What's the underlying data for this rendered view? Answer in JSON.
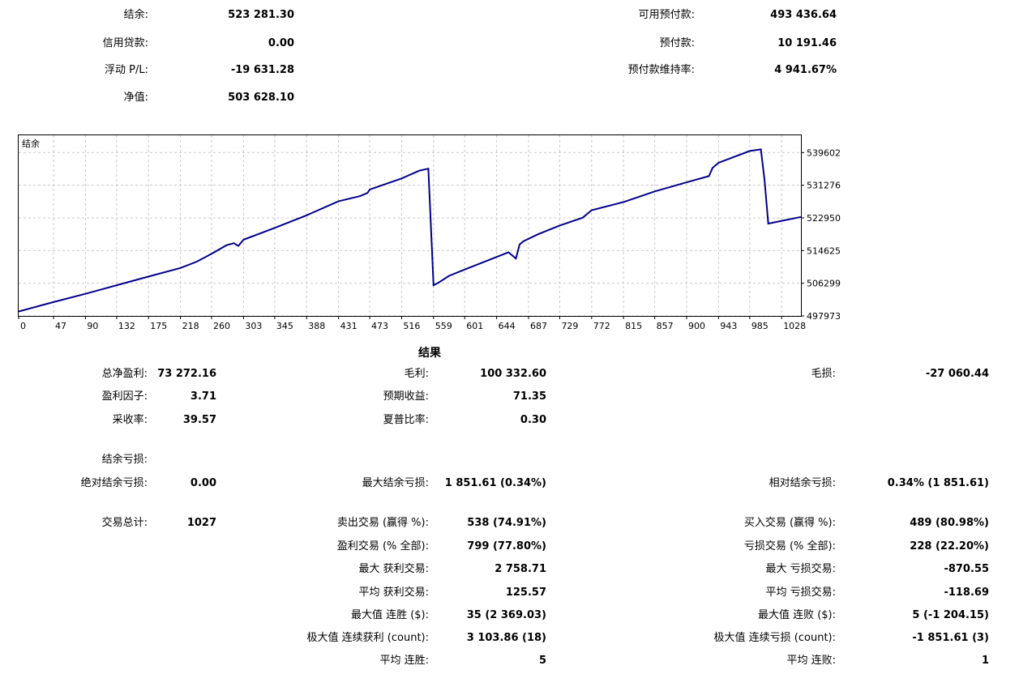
{
  "summary": {
    "balance_label": "结余:",
    "balance_value": "523 281.30",
    "credit_label": "信用贷款:",
    "credit_value": "0.00",
    "floating_label": "浮动 P/L:",
    "floating_value": "-19 631.28",
    "equity_label": "净值:",
    "equity_value": "503 628.10",
    "free_margin_label": "可用预付款:",
    "free_margin_value": "493 436.64",
    "margin_label": "预付款:",
    "margin_value": "10 191.46",
    "margin_level_label": "预付款维持率:",
    "margin_level_value": "4 941.67%"
  },
  "chart_data": {
    "type": "line",
    "title": "结余",
    "xlabel": "",
    "ylabel": "",
    "x_ticks": [
      "0",
      "47",
      "90",
      "132",
      "175",
      "218",
      "260",
      "303",
      "345",
      "388",
      "431",
      "473",
      "516",
      "559",
      "601",
      "644",
      "687",
      "729",
      "772",
      "815",
      "857",
      "900",
      "943",
      "985",
      "1028"
    ],
    "y_ticks": [
      "539602",
      "531276",
      "522950",
      "514625",
      "506299",
      "497973"
    ],
    "xlim": [
      0,
      1054
    ],
    "ylim": [
      497973,
      544000
    ],
    "grid": true,
    "line_color": "#00008b",
    "series": [
      {
        "x": [
          0,
          47,
          90,
          132,
          175,
          218,
          240,
          260,
          280,
          290,
          296,
          303,
          345,
          388,
          431,
          460,
          470,
          473,
          516,
          540,
          547,
          552,
          559,
          566,
          580,
          601,
          644,
          660,
          670,
          675,
          680,
          700,
          729,
          760,
          772,
          815,
          857,
          900,
          930,
          935,
          943,
          985,
          1000,
          1005,
          1010,
          1054
        ],
        "y": [
          499100,
          501500,
          503600,
          505800,
          508000,
          510200,
          511800,
          513800,
          516000,
          516500,
          515800,
          517400,
          520400,
          523600,
          527200,
          528500,
          529300,
          530200,
          533000,
          535000,
          535300,
          535500,
          505800,
          506500,
          508200,
          509800,
          513000,
          514200,
          512600,
          516200,
          517000,
          518800,
          521000,
          523000,
          524900,
          527000,
          529700,
          532000,
          533600,
          535700,
          537000,
          540000,
          540400,
          532600,
          521500,
          523200
        ]
      }
    ]
  },
  "results": {
    "title": "结果",
    "net_profit_label": "总净盈利:",
    "net_profit_value": "73 272.16",
    "gross_profit_label": "毛利:",
    "gross_profit_value": "100 332.60",
    "gross_loss_label": "毛损:",
    "gross_loss_value": "-27 060.44",
    "profit_factor_label": "盈利因子:",
    "profit_factor_value": "3.71",
    "expected_payoff_label": "预期收益:",
    "expected_payoff_value": "71.35",
    "recovery_factor_label": "采收率:",
    "recovery_factor_value": "39.57",
    "sharpe_label": "夏普比率:",
    "sharpe_value": "0.30",
    "drawdown_header_label": "结余亏损:",
    "abs_dd_label": "绝对结余亏损:",
    "abs_dd_value": "0.00",
    "max_dd_label": "最大结余亏损:",
    "max_dd_value": "1 851.61 (0.34%)",
    "rel_dd_label": "相对结余亏损:",
    "rel_dd_value": "0.34% (1 851.61)",
    "total_trades_label": "交易总计:",
    "total_trades_value": "1027",
    "short_trades_label": "卖出交易 (赢得 %):",
    "short_trades_value": "538 (74.91%)",
    "long_trades_label": "买入交易 (赢得 %):",
    "long_trades_value": "489 (80.98%)",
    "profit_trades_label": "盈利交易 (% 全部):",
    "profit_trades_value": "799 (77.80%)",
    "loss_trades_label": "亏损交易 (% 全部):",
    "loss_trades_value": "228 (22.20%)",
    "largest_profit_label": "最大 获利交易:",
    "largest_profit_value": "2 758.71",
    "largest_loss_label": "最大 亏损交易:",
    "largest_loss_value": "-870.55",
    "avg_profit_label": "平均 获利交易:",
    "avg_profit_value": "125.57",
    "avg_loss_label": "平均 亏损交易:",
    "avg_loss_value": "-118.69",
    "max_consec_wins_label": "最大值 连胜 ($):",
    "max_consec_wins_value": "35 (2 369.03)",
    "max_consec_losses_label": "最大值 连败 ($):",
    "max_consec_losses_value": "5 (-1 204.15)",
    "maximal_consec_profit_label": "极大值 连续获利 (count):",
    "maximal_consec_profit_value": "3 103.86 (18)",
    "maximal_consec_loss_label": "极大值 连续亏损 (count):",
    "maximal_consec_loss_value": "-1 851.61 (3)",
    "avg_consec_wins_label": "平均 连胜:",
    "avg_consec_wins_value": "5",
    "avg_consec_losses_label": "平均 连败:",
    "avg_consec_losses_value": "1"
  }
}
